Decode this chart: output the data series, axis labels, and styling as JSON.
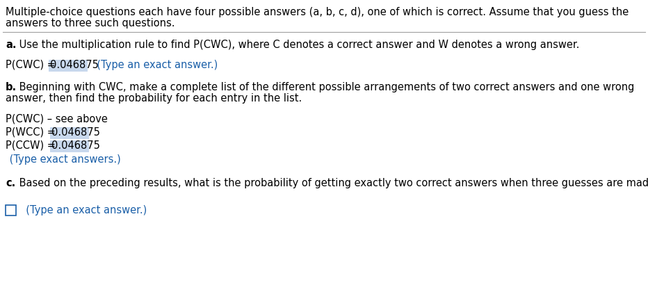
{
  "bg_color": "#ffffff",
  "text_color": "#000000",
  "blue_color": "#1a5fa8",
  "highlight_bg": "#c8d8ed",
  "separator_color": "#a0a0a0",
  "figsize": [
    9.32,
    4.33
  ],
  "dpi": 100,
  "header_line1": "Multiple-choice questions each have four possible answers (a, b, c, d), one of which is correct. Assume that you guess the",
  "header_line2": "answers to three such questions.",
  "part_a_label": "a.",
  "part_a_text": " Use the multiplication rule to find P(CWC), where C denotes a correct answer and W denotes a wrong answer.",
  "part_a_prob_prefix": "P(CWC) = ",
  "part_a_prob_value": "0.046875",
  "part_a_prob_suffix": "  (Type an exact answer.)",
  "part_b_label": "b.",
  "part_b_line1": " Beginning with CWC, make a complete list of the different possible arrangements of two correct answers and one wrong",
  "part_b_line2": "answer, then find the probability for each entry in the list.",
  "part_b_cwc": "P(CWC) – see above",
  "part_b_wcc_prefix": "P(WCC) = ",
  "part_b_wcc_value": "0.046875",
  "part_b_ccw_prefix": "P(CCW) = ",
  "part_b_ccw_value": "0.046875",
  "part_b_type_note": " (Type exact answers.)",
  "part_c_label": "c.",
  "part_c_text": " Based on the preceding results, what is the probability of getting exactly two correct answers when three guesses are made?",
  "part_c_note": "  (Type an exact answer.)",
  "font_size_main": 10.5
}
